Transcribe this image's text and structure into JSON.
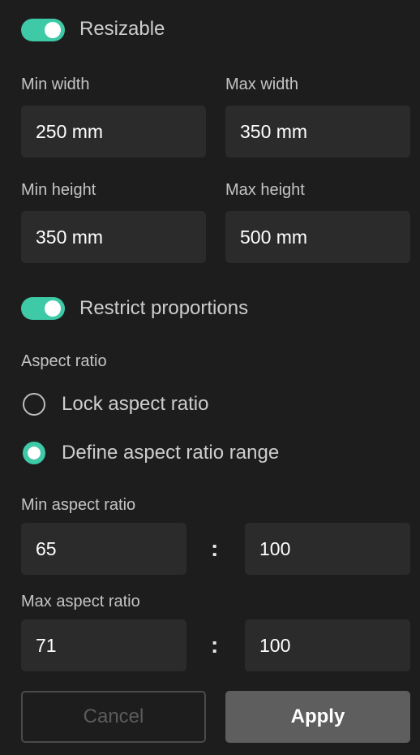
{
  "resizable": {
    "label": "Resizable",
    "enabled": true
  },
  "dimensions": {
    "min_width": {
      "label": "Min width",
      "value": "250 mm"
    },
    "max_width": {
      "label": "Max width",
      "value": "350 mm"
    },
    "min_height": {
      "label": "Min height",
      "value": "350 mm"
    },
    "max_height": {
      "label": "Max height",
      "value": "500 mm"
    }
  },
  "restrict_proportions": {
    "label": "Restrict proportions",
    "enabled": true
  },
  "aspect_ratio": {
    "section_label": "Aspect ratio",
    "options": [
      {
        "label": "Lock aspect ratio",
        "selected": false
      },
      {
        "label": "Define aspect ratio range",
        "selected": true
      }
    ],
    "min": {
      "label": "Min aspect ratio",
      "left": "65",
      "separator": ":",
      "right": "100"
    },
    "max": {
      "label": "Max aspect ratio",
      "left": "71",
      "separator": ":",
      "right": "100"
    }
  },
  "actions": {
    "cancel_label": "Cancel",
    "apply_label": "Apply"
  },
  "colors": {
    "background": "#1d1d1d",
    "accent": "#3ec9a7",
    "input_bg": "#2b2b2b",
    "apply_bg": "#5e5e5e"
  }
}
